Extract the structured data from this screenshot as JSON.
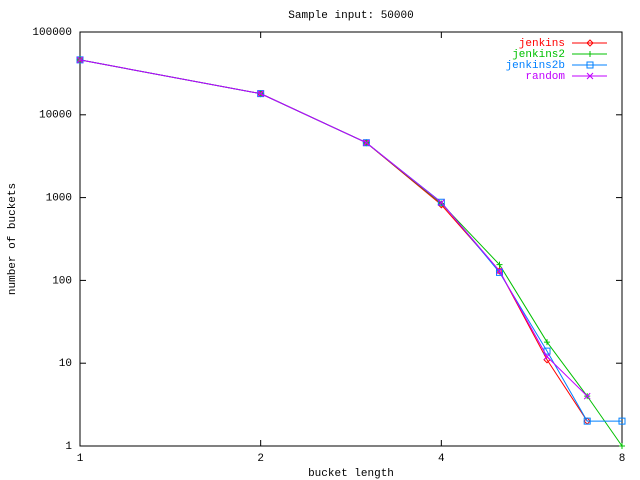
{
  "chart_data": {
    "type": "line",
    "title": "Sample input: 50000",
    "x_label": "bucket length",
    "y_label": "number of buckets",
    "x": [
      1,
      2,
      3,
      4,
      5,
      6,
      7,
      8
    ],
    "xlim": [
      1,
      8
    ],
    "ylim": [
      1,
      100000
    ],
    "xticks": [
      1,
      2,
      4,
      8
    ],
    "yticks": [
      1,
      10,
      100,
      1000,
      10000,
      100000
    ],
    "xscale": "log",
    "yscale": "log",
    "legend": "top-right",
    "series": [
      {
        "name": "jenkins",
        "color": "#ff0000",
        "marker": "diamond",
        "values": [
          46000,
          18000,
          4600,
          820,
          130,
          11,
          2,
          null
        ]
      },
      {
        "name": "jenkins2",
        "color": "#00c000",
        "marker": "plus",
        "values": [
          46000,
          18000,
          4600,
          850,
          155,
          18,
          4,
          1
        ]
      },
      {
        "name": "jenkins2b",
        "color": "#0080ff",
        "marker": "square",
        "values": [
          46000,
          18000,
          4600,
          880,
          125,
          14,
          2,
          2
        ]
      },
      {
        "name": "random",
        "color": "#c000ff",
        "marker": "cross",
        "values": [
          46000,
          18000,
          4600,
          870,
          130,
          12,
          4,
          null
        ]
      }
    ]
  }
}
